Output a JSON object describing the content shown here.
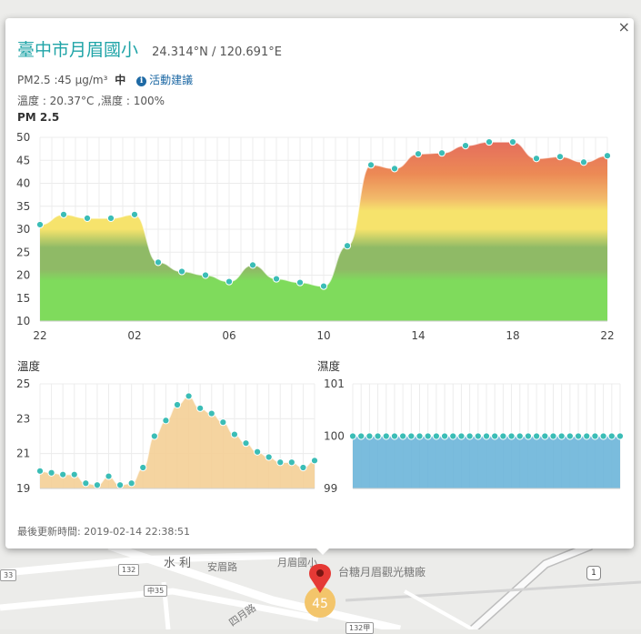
{
  "popup": {
    "title": "臺中市月眉國小",
    "coords": "24.314°N / 120.691°E",
    "close_label": "×",
    "pm_text": "PM2.5 :45 μg/m³",
    "pm_level": "中",
    "info_icon_glyph": "i",
    "activity_link": "活動建議",
    "weather_text": "溫度 : 20.37°C ,濕度 : 100%",
    "updated_text": "最後更新時間: 2019-02-14 22:38:51"
  },
  "map": {
    "labels": [
      "水 利",
      "安眉路",
      "月眉國小",
      "台糖月眉觀光糖廠",
      "四月路"
    ],
    "road_tags": [
      "33",
      "132",
      "中35",
      "132甲"
    ],
    "marker_value": "45"
  },
  "chart_data": [
    {
      "type": "area",
      "title": "PM 2.5",
      "x_tick_labels": [
        "22",
        "02",
        "06",
        "10",
        "14",
        "18",
        "22"
      ],
      "y_tick_labels": [
        "10",
        "15",
        "20",
        "25",
        "30",
        "35",
        "40",
        "45",
        "50"
      ],
      "ylim": [
        10,
        50
      ],
      "grid": true,
      "band_colors": [
        "#7fdb5c",
        "#8fba66",
        "#f6e36c",
        "#f2b96a",
        "#ec8a55",
        "#e46a5e"
      ],
      "series": [
        {
          "values": [
            31,
            33.2,
            32.4,
            32.4,
            33.2,
            22.8,
            20.8,
            20,
            18.6,
            22.2,
            19.2,
            18.4,
            17.6,
            26.4,
            44,
            43.2,
            46.4,
            46.6,
            48.2,
            49,
            49,
            45.4,
            45.8,
            44.6,
            46
          ]
        }
      ]
    },
    {
      "type": "area",
      "title": "溫度",
      "y_tick_labels": [
        "19",
        "21",
        "23",
        "25"
      ],
      "ylim": [
        19,
        25
      ],
      "grid": true,
      "fill_color": "#f4cf96",
      "point_color": "#3bbdb6",
      "series": [
        {
          "values": [
            20,
            19.9,
            19.8,
            19.8,
            19.3,
            19.2,
            19.7,
            19.2,
            19.3,
            20.2,
            22,
            22.9,
            23.8,
            24.3,
            23.6,
            23.3,
            22.8,
            22.1,
            21.6,
            21.1,
            20.8,
            20.5,
            20.5,
            20.2,
            20.6
          ]
        }
      ]
    },
    {
      "type": "area",
      "title": "濕度",
      "y_tick_labels": [
        "99",
        "100",
        "101"
      ],
      "ylim": [
        99,
        101
      ],
      "grid": true,
      "fill_color": "#6bb5d9",
      "point_color": "#3bbdb6",
      "series": [
        {
          "values": [
            100,
            100,
            100,
            100,
            100,
            100,
            100,
            100,
            100,
            100,
            100,
            100,
            100,
            100,
            100,
            100,
            100,
            100,
            100,
            100,
            100,
            100,
            100,
            100,
            100,
            100,
            100,
            100,
            100,
            100,
            100,
            100,
            100
          ]
        }
      ]
    }
  ]
}
